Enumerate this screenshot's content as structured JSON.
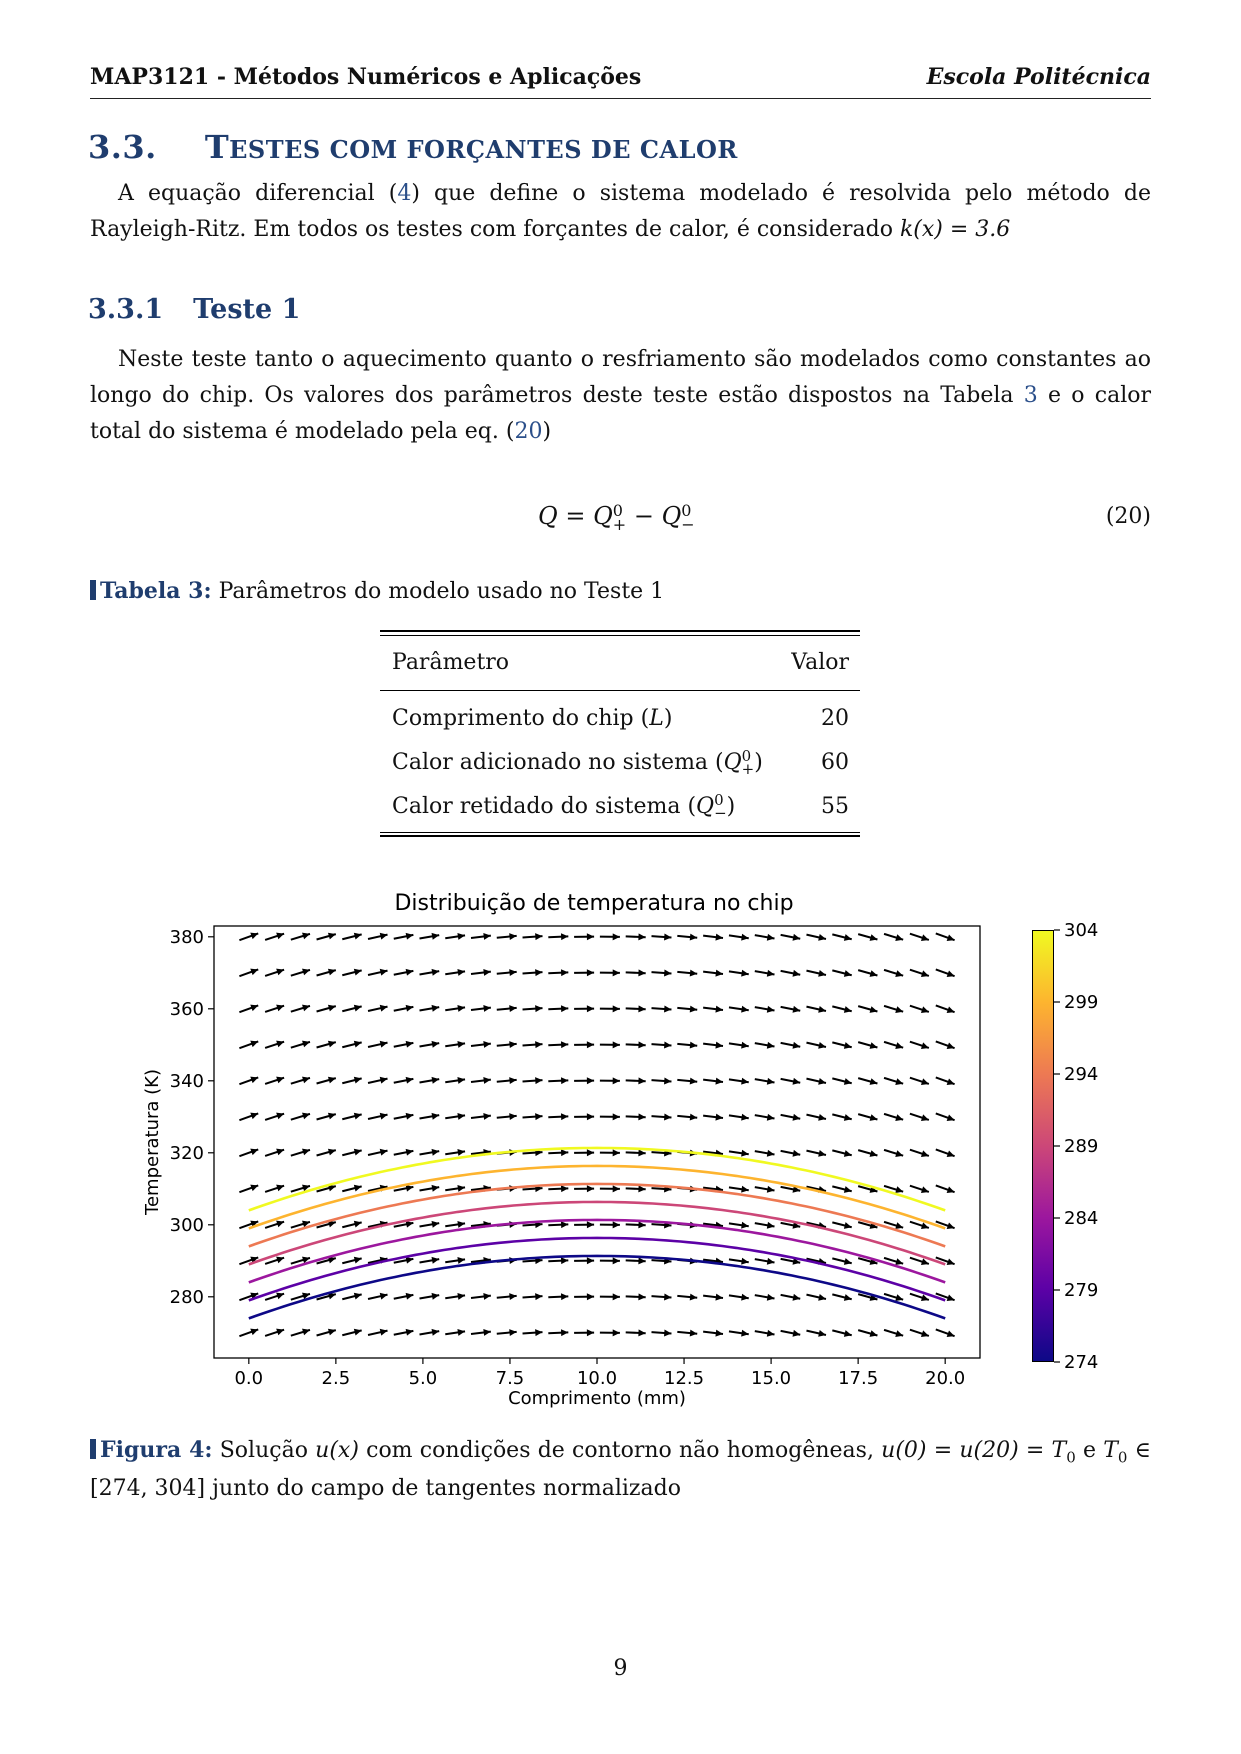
{
  "header": {
    "left": "MAP3121 - Métodos Numéricos e Aplicações",
    "right": "Escola Politécnica"
  },
  "section": {
    "number": "3.3.",
    "title_first": "T",
    "title_rest": "ESTES COM FORÇANTES DE CALOR"
  },
  "para1": {
    "before_ref": "A equação diferencial (",
    "ref": "4",
    "after_ref": ") que define o sistema modelado é resolvida pelo método de Rayleigh-Ritz. Em todos os testes com forçantes de calor, é considerado ",
    "math": "k(x) = 3.6"
  },
  "subsection": {
    "number": "3.3.1",
    "title": "Teste 1"
  },
  "para2": {
    "part1": "Neste teste tanto o aquecimento quanto o resfriamento são modelados como constantes ao longo do chip. Os valores dos parâmetros deste teste estão dispostos na Tabela ",
    "ref1": "3",
    "part2": " e o calor total do sistema é modelado pela eq. (",
    "ref2": "20",
    "part3": ")"
  },
  "equation": {
    "Q": "Q",
    "eq": "=",
    "minus": "−",
    "sup": "0",
    "plus_sub": "+",
    "minus_sub": "−",
    "number": "(20)"
  },
  "table_caption": {
    "label": "Tabela 3:",
    "text": "Parâmetros do modelo usado no Teste 1"
  },
  "table": {
    "headers": [
      "Parâmetro",
      "Valor"
    ],
    "rows": [
      {
        "label": "Comprimento do chip (",
        "sym": "L",
        "sup": "",
        "sub": "",
        "close": ")",
        "value": "20"
      },
      {
        "label": "Calor adicionado no sistema (",
        "sym": "Q",
        "sup": "0",
        "sub": "+",
        "close": ")",
        "value": "60"
      },
      {
        "label": "Calor retidado do sistema (",
        "sym": "Q",
        "sup": "0",
        "sub": "−",
        "close": ")",
        "value": "55"
      }
    ]
  },
  "chart_data": {
    "type": "line",
    "title": "Distribuição de temperatura no chip",
    "xlabel": "Comprimento (mm)",
    "ylabel": "Temperatura (K)",
    "xlim": [
      -1,
      21
    ],
    "ylim": [
      263,
      383
    ],
    "xticks": [
      "0.0",
      "2.5",
      "5.0",
      "7.5",
      "10.0",
      "12.5",
      "15.0",
      "17.5",
      "20.0"
    ],
    "yticks": [
      "280",
      "300",
      "320",
      "340",
      "360",
      "380"
    ],
    "curve_model": "u(x) = T0 + 69.4·(x/20)·(1 − x/20)",
    "series": [
      {
        "T0": 274,
        "color": "#0d0887"
      },
      {
        "T0": 279,
        "color": "#5c01a6"
      },
      {
        "T0": 284,
        "color": "#9c179e"
      },
      {
        "T0": 289,
        "color": "#cc4778"
      },
      {
        "T0": 294,
        "color": "#ed7953"
      },
      {
        "T0": 299,
        "color": "#fdb42f"
      },
      {
        "T0": 304,
        "color": "#f0f921"
      }
    ],
    "quiver": {
      "x_range": [
        0,
        20
      ],
      "x_count": 28,
      "y_range": [
        270,
        380
      ],
      "y_count": 12,
      "slope_at_x0": 3.47
    },
    "colorbar": {
      "ticks": [
        "304",
        "299",
        "294",
        "289",
        "284",
        "279",
        "274"
      ],
      "range": [
        274,
        304
      ]
    }
  },
  "figure_caption": {
    "label": "Figura 4:",
    "text1": "Solução ",
    "math1": "u(x)",
    "text2": " com condições de contorno não homogêneas, ",
    "math2": "u(0) = u(20) = T",
    "sub0": "0",
    "text3": " e ",
    "math3": "T",
    "sub1": "0",
    "math4": " ∈ [274, 304]",
    "text4": " junto do campo de tangentes normalizado"
  },
  "page_number": "9"
}
